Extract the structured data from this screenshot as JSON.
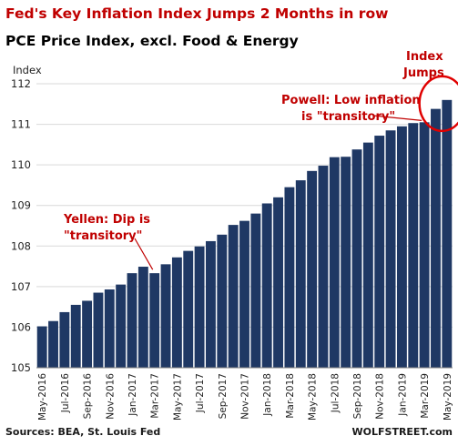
{
  "title": "Fed's Key Inflation Index Jumps 2 Months  in row",
  "subtitle": "PCE Price Index, excl. Food & Energy",
  "source": "Sources: BEA, St. Louis Fed",
  "brand": "WOLFSTREET.com",
  "colors": {
    "title": "#c00000",
    "bar": "#1f3864",
    "annotation": "#c00000",
    "circle": "#e00000",
    "grid": "#d9d9d9"
  },
  "annotations": [
    {
      "text_lines": [
        "Yellen: Dip is",
        "\"transitory\""
      ],
      "target": "Mar-2017"
    },
    {
      "text_lines": [
        "Powell: Low inflation",
        "is \"transitory\""
      ],
      "target": "Mar-2019"
    },
    {
      "text_lines": [
        "Index",
        "Jumps"
      ],
      "target": "May-2019"
    }
  ],
  "chart_data": {
    "type": "bar",
    "ylabel": "Index",
    "ylim": [
      105,
      112
    ],
    "yticks": [
      105,
      106,
      107,
      108,
      109,
      110,
      111,
      112
    ],
    "grid": true,
    "categories": [
      "May-2016",
      "Jun-2016",
      "Jul-2016",
      "Aug-2016",
      "Sep-2016",
      "Oct-2016",
      "Nov-2016",
      "Dec-2016",
      "Jan-2017",
      "Feb-2017",
      "Mar-2017",
      "Apr-2017",
      "May-2017",
      "Jun-2017",
      "Jul-2017",
      "Aug-2017",
      "Sep-2017",
      "Oct-2017",
      "Nov-2017",
      "Dec-2017",
      "Jan-2018",
      "Feb-2018",
      "Mar-2018",
      "Apr-2018",
      "May-2018",
      "Jun-2018",
      "Jul-2018",
      "Aug-2018",
      "Sep-2018",
      "Oct-2018",
      "Nov-2018",
      "Dec-2018",
      "Jan-2019",
      "Feb-2019",
      "Mar-2019",
      "Apr-2019",
      "May-2019"
    ],
    "tick_labels": [
      "May-2016",
      "Jul-2016",
      "Sep-2016",
      "Nov-2016",
      "Jan-2017",
      "Mar-2017",
      "May-2017",
      "Jul-2017",
      "Sep-2017",
      "Nov-2017",
      "Jan-2018",
      "Mar-2018",
      "May-2018",
      "Jul-2018",
      "Sep-2018",
      "Nov-2018",
      "Jan-2019",
      "Mar-2019",
      "May-2019"
    ],
    "values": [
      106.02,
      106.15,
      106.37,
      106.55,
      106.65,
      106.85,
      106.93,
      107.05,
      107.33,
      107.49,
      107.33,
      107.55,
      107.72,
      107.88,
      107.99,
      108.12,
      108.28,
      108.52,
      108.62,
      108.8,
      109.05,
      109.2,
      109.45,
      109.62,
      109.85,
      109.98,
      110.19,
      110.2,
      110.38,
      110.55,
      110.72,
      110.85,
      110.95,
      111.03,
      111.05,
      111.38,
      111.6
    ]
  }
}
